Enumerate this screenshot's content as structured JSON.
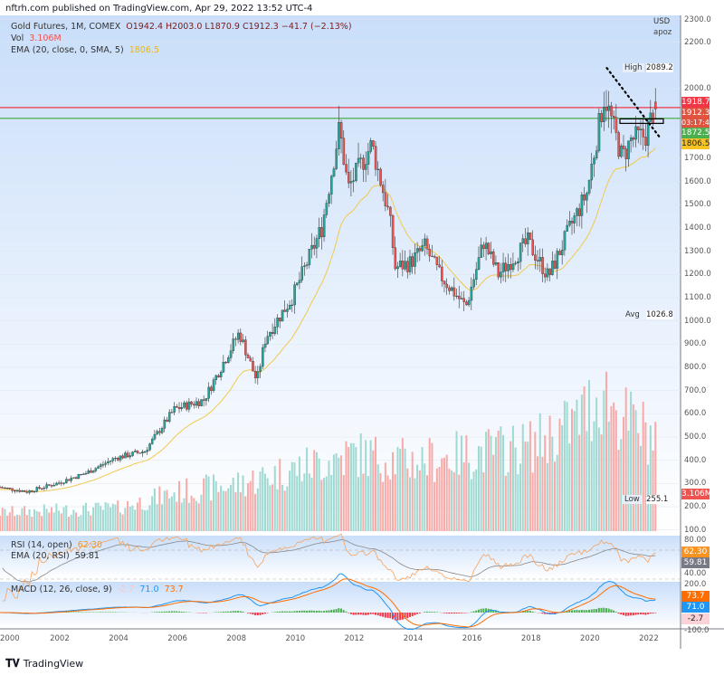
{
  "publisher": "nftrh.com published on TradingView.com, Apr 29, 2022 13:52 UTC-4",
  "legend": {
    "symbol": "Gold Futures, 1M, COMEX",
    "ohlc": "O1942.4  H2003.0  L1870.9  C1912.3  −41.7 (−2.13%)",
    "vol_label": "Vol",
    "vol_value": "3.106M",
    "ema_label": "EMA (20, close, 0, SMA, 5)",
    "ema_value": "1806.5",
    "rsi_label": "RSI (14, open)",
    "rsi_value": "62.30",
    "rsi_ema_label": "EMA (20, RSI)",
    "rsi_ema_value": "59.81",
    "macd_label": "MACD (12, 26, close, 9)",
    "macd_hist": "-2.7",
    "macd_value": "71.0",
    "macd_signal": "73.7"
  },
  "axis": {
    "currency": "USD",
    "unit": "apoz",
    "price_ticks": [
      "2300.0",
      "2200.0",
      "2000.0",
      "1700.0",
      "1600.0",
      "1500.0",
      "1400.0",
      "1300.0",
      "1200.0",
      "1100.0",
      "1000.0",
      "900.0",
      "800.0",
      "700.0",
      "600.0",
      "500.0",
      "400.0",
      "300.0",
      "200.0",
      "100.0"
    ],
    "high_label": "High",
    "high_value": "2089.2",
    "low_label": "Low",
    "low_value": "255.1",
    "avg_label": "Avg",
    "avg_value": "1026.8",
    "tags": {
      "red": "1918.7",
      "last": "1912.3",
      "countdown": "03:17:44",
      "green": "1872.5",
      "ema": "1806.5",
      "vol": "3.106M"
    },
    "rsi_ticks": [
      "80.00",
      "40.00"
    ],
    "rsi_tags": [
      "62.30",
      "59.81"
    ],
    "macd_ticks": [
      "200.0",
      "-100.0"
    ],
    "macd_tags": [
      "73.7",
      "71.0",
      "-2.7"
    ],
    "years": [
      "2000",
      "2002",
      "2004",
      "2006",
      "2008",
      "2010",
      "2012",
      "2014",
      "2016",
      "2018",
      "2020",
      "2022"
    ]
  },
  "colors": {
    "up": "#26a69a",
    "down": "#ef5350",
    "ema": "#f2c94c",
    "rsi": "#f7a35c",
    "rsi_ema": "#888888",
    "macd": "#2196f3",
    "signal": "#ff6d00",
    "red_line": "#f23645",
    "green_line": "#4caf50"
  },
  "footer": "TradingView",
  "chart_data": {
    "type": "candlestick",
    "title": "Gold Futures, 1M, COMEX",
    "x_range": [
      2000,
      2022.33
    ],
    "y_range": [
      100,
      2300
    ],
    "levels": [
      1918.7,
      1872.5
    ],
    "trendline": [
      [
        2020.6,
        2089
      ],
      [
        2022.4,
        1790
      ]
    ],
    "price_keypoints": [
      [
        2000,
        285
      ],
      [
        2001,
        265
      ],
      [
        2002,
        300
      ],
      [
        2003,
        345
      ],
      [
        2004,
        410
      ],
      [
        2005,
        440
      ],
      [
        2006,
        620
      ],
      [
        2007,
        660
      ],
      [
        2008.2,
        950
      ],
      [
        2008.8,
        740
      ],
      [
        2009.1,
        930
      ],
      [
        2010,
        1100
      ],
      [
        2011,
        1400
      ],
      [
        2011.6,
        1830
      ],
      [
        2011.9,
        1570
      ],
      [
        2012.7,
        1760
      ],
      [
        2013.3,
        1450
      ],
      [
        2013.5,
        1230
      ],
      [
        2014,
        1250
      ],
      [
        2014.5,
        1320
      ],
      [
        2015,
        1200
      ],
      [
        2015.9,
        1060
      ],
      [
        2016.5,
        1340
      ],
      [
        2017,
        1200
      ],
      [
        2018,
        1340
      ],
      [
        2018.7,
        1190
      ],
      [
        2019.5,
        1420
      ],
      [
        2020,
        1550
      ],
      [
        2020.6,
        1970
      ],
      [
        2021.2,
        1700
      ],
      [
        2021.5,
        1780
      ],
      [
        2022,
        1800
      ],
      [
        2022.3,
        1912
      ]
    ],
    "volume_keypoints": [
      [
        2000,
        0.12
      ],
      [
        2004,
        0.15
      ],
      [
        2006,
        0.25
      ],
      [
        2008,
        0.3
      ],
      [
        2010,
        0.4
      ],
      [
        2012,
        0.5
      ],
      [
        2014,
        0.45
      ],
      [
        2016,
        0.5
      ],
      [
        2018,
        0.55
      ],
      [
        2019.5,
        0.7
      ],
      [
        2020.5,
        0.9
      ],
      [
        2021,
        0.75
      ],
      [
        2022.3,
        0.6
      ]
    ]
  }
}
